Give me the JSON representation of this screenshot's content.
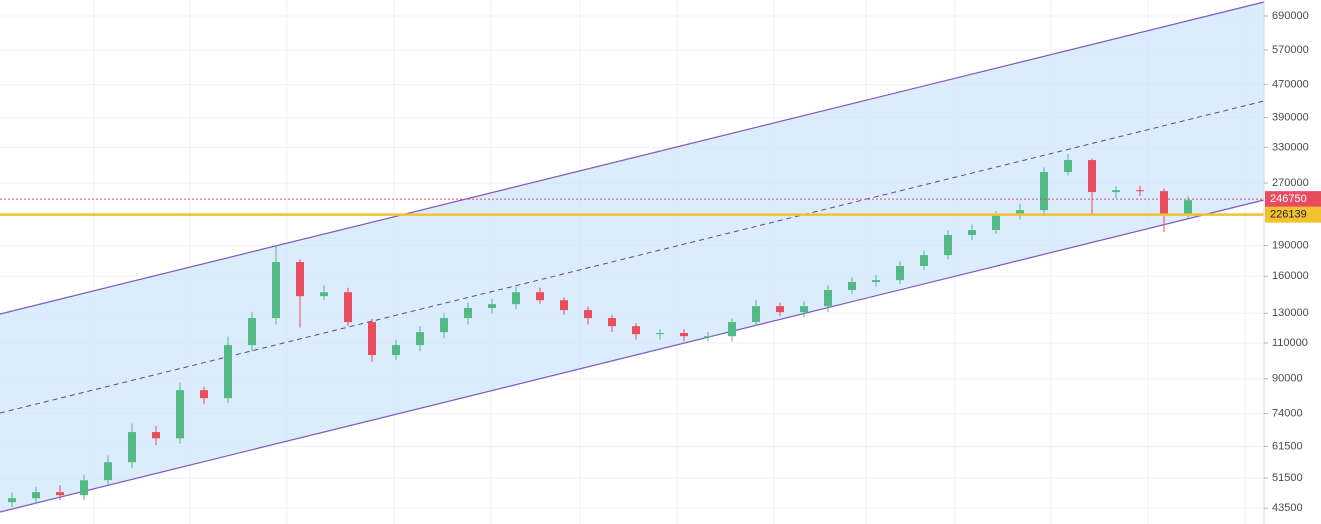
{
  "chart_data": {
    "type": "candlestick",
    "log_scale": true,
    "grid": true,
    "up_color": "#53b987",
    "down_color": "#eb4d5c",
    "ylim": [
      39800,
      755000
    ],
    "yticks": [
      43500,
      51500,
      61500,
      74000,
      90000,
      110000,
      130000,
      160000,
      190000,
      270000,
      330000,
      390000,
      470000,
      570000,
      690000
    ],
    "open": [
      45000,
      46000,
      47600,
      46800,
      50900,
      56300,
      66700,
      64400,
      84400,
      80700,
      108700,
      126500,
      173300,
      143100,
      146300,
      123700,
      102800,
      108700,
      116900,
      126500,
      133900,
      136800,
      146300,
      139900,
      132300,
      126500,
      120900,
      115600,
      116300,
      114300,
      114300,
      123700,
      135300,
      130800,
      135300,
      148100,
      154900,
      156600,
      169500,
      180200,
      201700,
      207400,
      225600,
      232000,
      287300,
      307300,
      256700,
      259500,
      258100,
      226900
    ],
    "high": [
      47500,
      49000,
      49500,
      52500,
      58500,
      70000,
      69000,
      88000,
      86000,
      114000,
      131000,
      190000,
      176000,
      152000,
      150000,
      126000,
      112000,
      121000,
      130000,
      138000,
      141000,
      151000,
      150000,
      142000,
      135000,
      129000,
      123000,
      119000,
      119000,
      117000,
      126000,
      140000,
      138000,
      139000,
      152000,
      159000,
      161000,
      174000,
      185000,
      207000,
      214000,
      231000,
      240000,
      295000,
      318000,
      310000,
      265000,
      266000,
      262000,
      251000
    ],
    "low": [
      43800,
      44500,
      45500,
      45500,
      49500,
      54500,
      62000,
      62500,
      78000,
      78500,
      105000,
      122000,
      120000,
      140000,
      121000,
      99000,
      100000,
      105000,
      113000,
      122000,
      130000,
      133000,
      137000,
      129000,
      122000,
      117000,
      112000,
      112000,
      111000,
      111000,
      111000,
      121000,
      128000,
      127000,
      131000,
      145000,
      151000,
      153000,
      166000,
      176000,
      196000,
      203000,
      220000,
      227000,
      282000,
      226000,
      248000,
      251000,
      205000,
      222000
    ],
    "close": [
      46000,
      47600,
      46800,
      50900,
      56300,
      66700,
      64400,
      84400,
      80700,
      108700,
      126500,
      173300,
      143100,
      146300,
      123700,
      102800,
      108700,
      116900,
      126500,
      133900,
      136800,
      146300,
      139900,
      132300,
      126500,
      120900,
      115600,
      116300,
      114300,
      114300,
      123700,
      135300,
      130800,
      135300,
      148100,
      154900,
      156600,
      169500,
      180200,
      201700,
      207400,
      225600,
      232000,
      287300,
      307300,
      256700,
      259500,
      258100,
      226900,
      245400
    ],
    "price_lines": [
      {
        "value": 246750,
        "color": "#e84c5f"
      },
      {
        "value": 226139,
        "color": "#f2c230"
      }
    ]
  }
}
